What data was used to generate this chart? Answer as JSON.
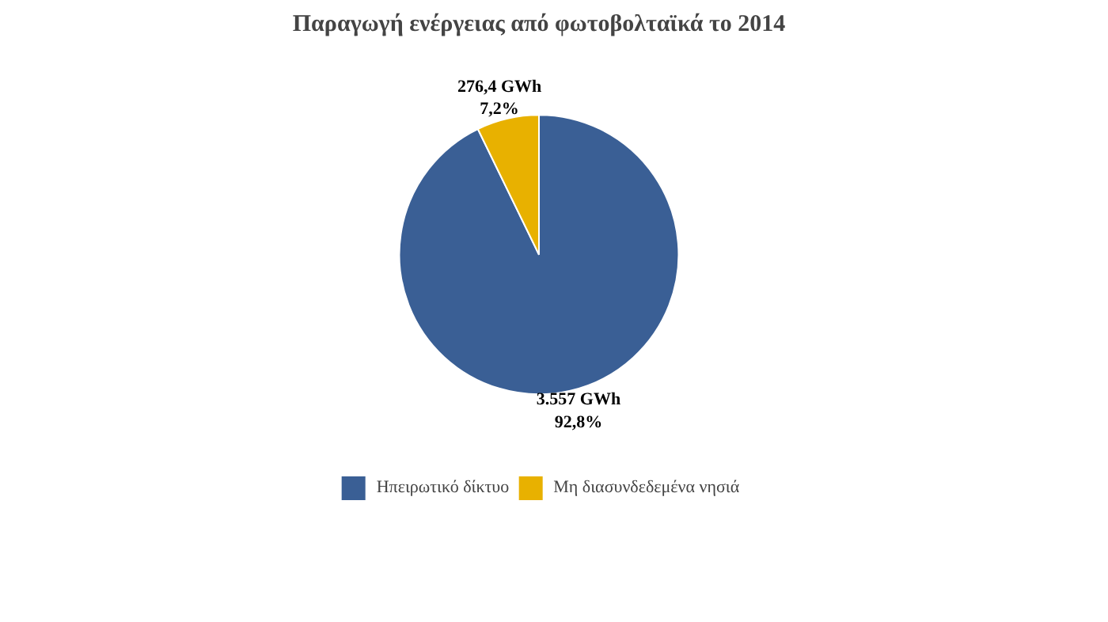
{
  "chart_data": {
    "type": "pie",
    "title": "Παραγωγή ενέργειας από φωτοβολταϊκά το 2014",
    "categories": [
      "Ηπειρωτικό δίκτυο",
      "Μη διασυνδεδεμένα νησιά"
    ],
    "values": [
      3557,
      276.4
    ],
    "colors": [
      "#3a5f95",
      "#e8b100"
    ],
    "value_labels": [
      "3.557 GWh\n92,8%",
      "276,4 GWh\n7,2%"
    ],
    "legend": "bottom"
  }
}
